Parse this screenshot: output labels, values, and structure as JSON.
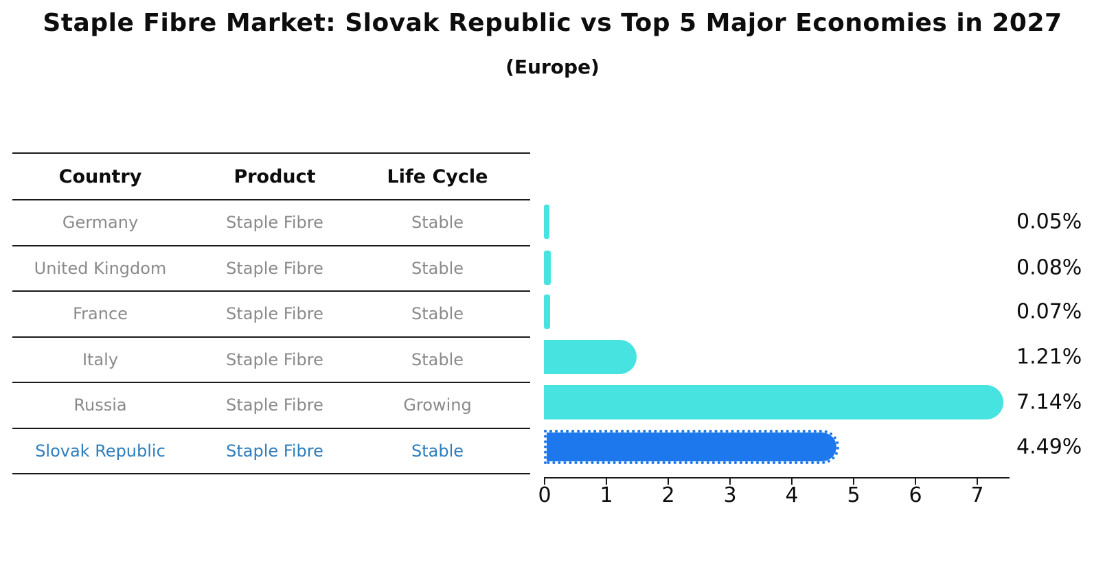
{
  "title": "Staple Fibre Market: Slovak Republic vs Top 5 Major Economies in 2027",
  "subtitle": "(Europe)",
  "table": {
    "headers": [
      "Country",
      "Product",
      "Life Cycle"
    ],
    "rows": [
      {
        "country": "Germany",
        "product": "Staple Fibre",
        "life_cycle": "Stable",
        "highlight": false
      },
      {
        "country": "United Kingdom",
        "product": "Staple Fibre",
        "life_cycle": "Stable",
        "highlight": false
      },
      {
        "country": "France",
        "product": "Staple Fibre",
        "life_cycle": "Stable",
        "highlight": false
      },
      {
        "country": "Italy",
        "product": "Staple Fibre",
        "life_cycle": "Stable",
        "highlight": false
      },
      {
        "country": "Russia",
        "product": "Staple Fibre",
        "life_cycle": "Growing",
        "highlight": false
      },
      {
        "country": "Slovak Republic",
        "product": "Staple Fibre",
        "life_cycle": "Stable",
        "highlight": true
      }
    ]
  },
  "chart_data": {
    "type": "bar",
    "orientation": "horizontal",
    "title": "Staple Fibre Market: Slovak Republic vs Top 5 Major Economies in 2027",
    "subtitle": "(Europe)",
    "categories": [
      "Germany",
      "United Kingdom",
      "France",
      "Italy",
      "Russia",
      "Slovak Republic"
    ],
    "values": [
      0.05,
      0.08,
      0.07,
      1.21,
      7.14,
      4.49
    ],
    "value_labels": [
      "0.05%",
      "0.08%",
      "0.07%",
      "1.21%",
      "7.14%",
      "4.49%"
    ],
    "xlabel": "",
    "ylabel": "",
    "xticks": [
      "0",
      "1",
      "2",
      "3",
      "4",
      "5",
      "6",
      "7"
    ],
    "xlim": [
      0,
      7.5
    ],
    "grid": false,
    "legend": "none",
    "highlight_index": 5,
    "colors": {
      "bar": "#46e3e0",
      "highlight_bar": "#1c78ec",
      "highlight_text": "#2e7ebd",
      "row_text": "#8a8a8a",
      "header_text": "#0d0d0d",
      "axis": "#1a1a1a",
      "background": "#ffffff"
    }
  }
}
